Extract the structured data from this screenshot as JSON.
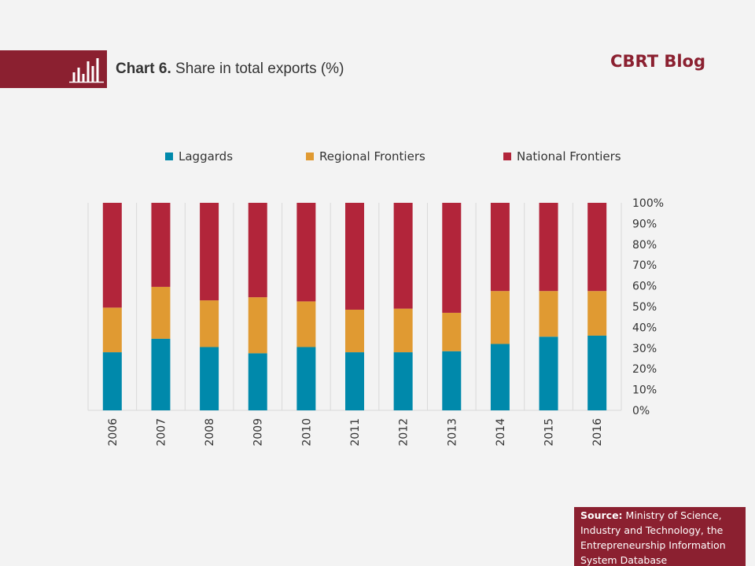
{
  "header": {
    "chart_number": "Chart 6.",
    "chart_title": "Share in total exports (%)",
    "blog_label": "CBRT Blog"
  },
  "source": {
    "label": "Source:",
    "text": "Ministry of Science, Industry and Technology, the Entrepreneurship Information System Database"
  },
  "colors": {
    "brand": "#8b2030",
    "laggards": "#0089ab",
    "regional": "#e09a32",
    "national": "#b2253a",
    "gridline": "#d9d9d9"
  },
  "chart_data": {
    "type": "bar",
    "stacked": true,
    "percent_stacked": true,
    "categories": [
      "2006",
      "2007",
      "2008",
      "2009",
      "2010",
      "2011",
      "2012",
      "2013",
      "2014",
      "2015",
      "2016"
    ],
    "series": [
      {
        "name": "Laggards",
        "values": [
          28,
          34.5,
          30.5,
          27.5,
          30.5,
          28,
          28,
          28.5,
          32,
          35.5,
          36
        ]
      },
      {
        "name": "Regional Frontiers",
        "values": [
          21.5,
          25,
          22.5,
          27,
          22,
          20.5,
          21,
          18.5,
          25.5,
          22,
          21.5
        ]
      },
      {
        "name": "National Frontiers",
        "values": [
          50.5,
          40.5,
          47,
          45.5,
          47.5,
          51.5,
          51,
          53,
          42.5,
          42.5,
          42.5
        ]
      }
    ],
    "ylim": [
      0,
      100
    ],
    "y_ticks": [
      "0%",
      "10%",
      "20%",
      "30%",
      "40%",
      "50%",
      "60%",
      "70%",
      "80%",
      "90%",
      "100%"
    ],
    "y_axis_side": "right",
    "x_tick_rotation": "vertical",
    "gridlines": "vertical",
    "legend_position": "top"
  }
}
